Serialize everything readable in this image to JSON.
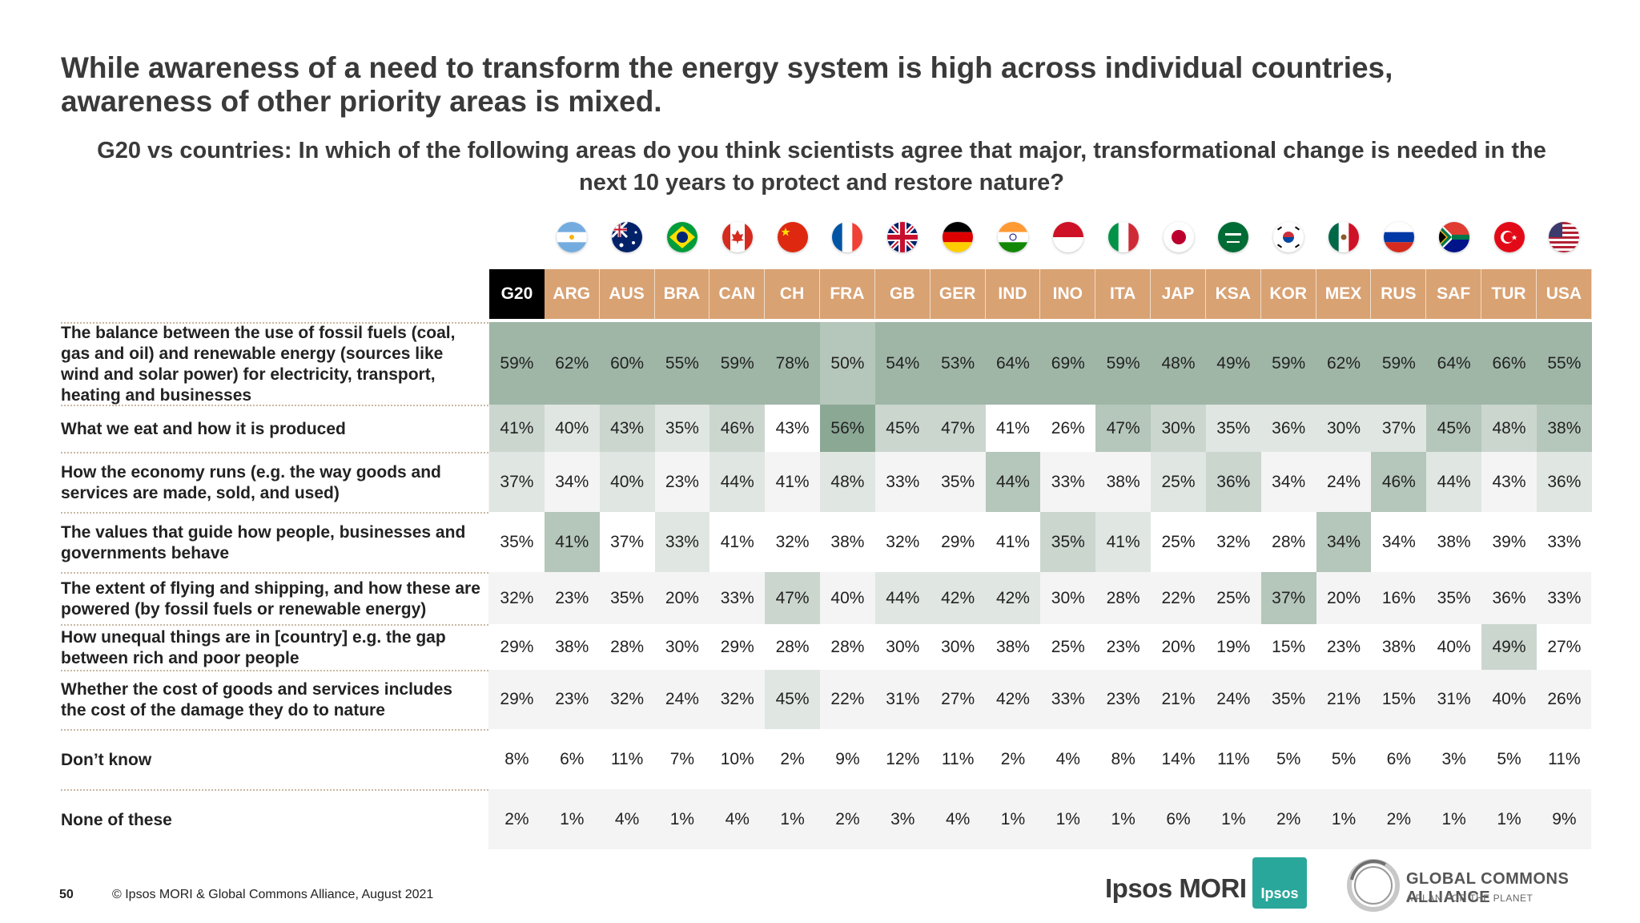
{
  "slide": {
    "title_lines": [
      "While awareness of a need to transform the energy system is high across individual countries,",
      "awareness of other priority areas is mixed."
    ],
    "subtitle_lines": [
      "G20 vs countries: In which of the following areas do you think scientists agree that major, transformational change is needed in the",
      "next 10 years to protect and restore nature?"
    ],
    "page_number": "50",
    "copyright": "© Ipsos MORI & Global Commons Alliance, August 2021",
    "logos": {
      "ipsos_text": "Ipsos MORI",
      "ipsos_box": "Ipsos",
      "gca_name": "GLOBAL COMMONS ALLIANCE",
      "gca_tag": "A PLAN FOR THE PLANET"
    }
  },
  "colors": {
    "header_country": "#d9a273",
    "header_g20": "#000000",
    "highlight_scale": [
      "#ffffff",
      "#f2f2f2",
      "#e0e6e2",
      "#cbd6cf",
      "#b5c6bb",
      "#9fb6a7",
      "#8aa894"
    ]
  },
  "flags": [
    "argentina-flag",
    "australia-flag",
    "brazil-flag",
    "canada-flag",
    "china-flag",
    "france-flag",
    "uk-flag",
    "germany-flag",
    "india-flag",
    "indonesia-flag",
    "italy-flag",
    "japan-flag",
    "saudi-arabia-flag",
    "south-korea-flag",
    "mexico-flag",
    "russia-flag",
    "south-africa-flag",
    "turkey-flag",
    "usa-flag"
  ],
  "chart_data": {
    "type": "table",
    "columns": [
      "G20",
      "ARG",
      "AUS",
      "BRA",
      "CAN",
      "CH",
      "FRA",
      "GB",
      "GER",
      "IND",
      "INO",
      "ITA",
      "JAP",
      "KSA",
      "KOR",
      "MEX",
      "RUS",
      "SAF",
      "TUR",
      "USA"
    ],
    "rows": [
      {
        "label": "The balance between the use of fossil fuels (coal, gas and oil) and renewable energy (sources like wind and solar power) for electricity, transport, heating and businesses",
        "values": [
          "59%",
          "62%",
          "60%",
          "55%",
          "59%",
          "78%",
          "50%",
          "54%",
          "53%",
          "64%",
          "69%",
          "59%",
          "48%",
          "49%",
          "59%",
          "62%",
          "59%",
          "64%",
          "66%",
          "55%"
        ],
        "shade": [
          5,
          5,
          5,
          5,
          5,
          5,
          4,
          5,
          5,
          5,
          5,
          5,
          5,
          5,
          5,
          5,
          5,
          5,
          5,
          5
        ]
      },
      {
        "label": "What we eat and how it is produced",
        "values": [
          "41%",
          "40%",
          "43%",
          "35%",
          "46%",
          "43%",
          "56%",
          "45%",
          "47%",
          "41%",
          "26%",
          "47%",
          "30%",
          "35%",
          "36%",
          "30%",
          "37%",
          "45%",
          "48%",
          "38%"
        ],
        "shade": [
          3,
          2,
          3,
          2,
          3,
          0,
          6,
          3,
          3,
          0,
          0,
          4,
          3,
          2,
          2,
          2,
          2,
          4,
          3,
          4
        ]
      },
      {
        "label": "How the economy runs (e.g. the way goods and services are made, sold, and used)",
        "values": [
          "37%",
          "34%",
          "40%",
          "23%",
          "44%",
          "41%",
          "48%",
          "33%",
          "35%",
          "44%",
          "33%",
          "38%",
          "25%",
          "36%",
          "34%",
          "24%",
          "46%",
          "44%",
          "43%",
          "36%"
        ],
        "shade": [
          2,
          1,
          2,
          1,
          2,
          1,
          2,
          1,
          1,
          4,
          1,
          1,
          2,
          3,
          1,
          1,
          4,
          2,
          1,
          2
        ]
      },
      {
        "label": "The values that guide how people, businesses and governments behave",
        "values": [
          "35%",
          "41%",
          "37%",
          "33%",
          "41%",
          "32%",
          "38%",
          "32%",
          "29%",
          "41%",
          "35%",
          "41%",
          "25%",
          "32%",
          "28%",
          "34%",
          "34%",
          "38%",
          "39%",
          "33%"
        ],
        "shade": [
          1,
          4,
          1,
          2,
          1,
          1,
          1,
          1,
          1,
          1,
          3,
          2,
          1,
          1,
          1,
          4,
          1,
          1,
          1,
          1
        ]
      },
      {
        "label": "The extent of flying and shipping, and how these are powered (by fossil fuels or renewable energy)",
        "values": [
          "32%",
          "23%",
          "35%",
          "20%",
          "33%",
          "47%",
          "40%",
          "44%",
          "42%",
          "42%",
          "30%",
          "28%",
          "22%",
          "25%",
          "37%",
          "20%",
          "16%",
          "35%",
          "36%",
          "33%"
        ],
        "shade": [
          1,
          1,
          1,
          1,
          1,
          3,
          1,
          2,
          2,
          2,
          1,
          1,
          1,
          1,
          4,
          1,
          1,
          1,
          1,
          1
        ]
      },
      {
        "label": "How unequal things are in [country] e.g. the gap between rich and poor people",
        "values": [
          "29%",
          "38%",
          "28%",
          "30%",
          "29%",
          "28%",
          "28%",
          "30%",
          "30%",
          "38%",
          "25%",
          "23%",
          "20%",
          "19%",
          "15%",
          "23%",
          "38%",
          "40%",
          "49%",
          "27%"
        ],
        "shade": [
          0,
          0,
          0,
          0,
          0,
          0,
          0,
          0,
          0,
          0,
          0,
          0,
          0,
          0,
          0,
          0,
          0,
          0,
          3,
          0
        ]
      },
      {
        "label": "Whether the cost of goods and services includes the cost of the damage they do to nature",
        "values": [
          "29%",
          "23%",
          "32%",
          "24%",
          "32%",
          "45%",
          "22%",
          "31%",
          "27%",
          "42%",
          "33%",
          "23%",
          "21%",
          "24%",
          "35%",
          "21%",
          "15%",
          "31%",
          "40%",
          "26%"
        ],
        "shade": [
          1,
          1,
          1,
          1,
          1,
          2,
          1,
          1,
          1,
          1,
          1,
          1,
          1,
          1,
          1,
          1,
          1,
          1,
          1,
          1
        ]
      },
      {
        "label": "Don’t know",
        "values": [
          "8%",
          "6%",
          "11%",
          "7%",
          "10%",
          "2%",
          "9%",
          "12%",
          "11%",
          "2%",
          "4%",
          "8%",
          "14%",
          "11%",
          "5%",
          "5%",
          "6%",
          "3%",
          "5%",
          "11%"
        ],
        "shade": [
          0,
          0,
          0,
          0,
          0,
          0,
          0,
          0,
          0,
          0,
          0,
          0,
          0,
          0,
          0,
          0,
          0,
          0,
          0,
          0
        ]
      },
      {
        "label": "None of these",
        "values": [
          "2%",
          "1%",
          "4%",
          "1%",
          "4%",
          "1%",
          "2%",
          "3%",
          "4%",
          "1%",
          "1%",
          "1%",
          "6%",
          "1%",
          "2%",
          "1%",
          "2%",
          "1%",
          "1%",
          "9%"
        ],
        "shade": [
          1,
          1,
          1,
          1,
          1,
          1,
          1,
          1,
          1,
          1,
          1,
          1,
          1,
          1,
          1,
          1,
          1,
          1,
          1,
          1
        ]
      }
    ]
  }
}
